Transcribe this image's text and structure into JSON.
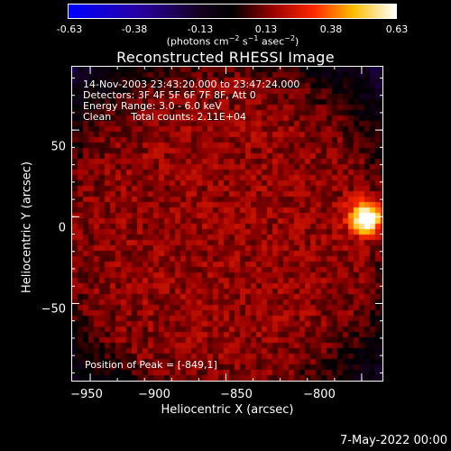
{
  "colorbar": {
    "ticks": [
      "-0.63",
      "-0.38",
      "-0.13",
      "0.13",
      "0.38",
      "0.63"
    ],
    "min": -0.63,
    "max": 0.63,
    "colormap": "blue-black-red-yellow-white"
  },
  "chart_data": {
    "type": "heatmap",
    "title": "Reconstructed RHESSI Image",
    "xlabel": "Heliocentric X (arcsec)",
    "ylabel": "Heliocentric Y (arcsec)",
    "xlim": [
      -957,
      -842
    ],
    "ylim": [
      -95,
      87
    ],
    "xticks": [
      -950,
      -900,
      -850,
      -800
    ],
    "yticks": [
      50,
      0,
      -50
    ],
    "peak": {
      "x": -849,
      "y": 1,
      "value": 0.63
    },
    "annotations": {
      "time_range": "14-Nov-2003 23:43:20.000 to 23:47:24.000",
      "detectors": "Detectors: 3F 4F 5F 6F 7F 8F, Att 0",
      "energy": "Energy Range: 3.0 - 6.0 keV",
      "clean_label": "Clean",
      "counts": "Total counts: 2.11E+04",
      "position_of_peak": "Position of Peak = [-849,1]"
    }
  },
  "text": {
    "colorbar_unit_prefix": "(photons cm",
    "colorbar_unit_exp1": "−2",
    "colorbar_unit_mid": " s",
    "colorbar_unit_exp2": "−1",
    "colorbar_unit_suffix": " asec",
    "colorbar_unit_exp3": "−2",
    "colorbar_unit_close": ")",
    "footer_date": "7-May-2022 00:00"
  },
  "xtick_labels": [
    "−950",
    "−900",
    "−850",
    "−800"
  ],
  "ytick_labels": [
    "50",
    "0",
    "−50"
  ]
}
